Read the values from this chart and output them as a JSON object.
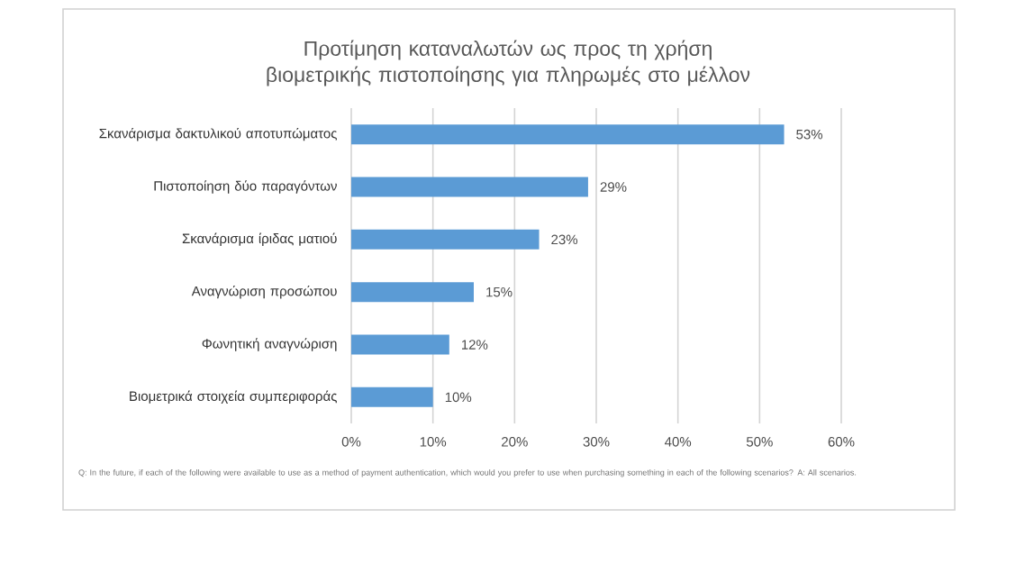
{
  "chart_data": {
    "type": "bar",
    "orientation": "horizontal",
    "title": "Προτίμηση καταναλωτών ως προς τη χρήση βιομετρικής πιστοποίησης για πληρωμές στο μέλλον",
    "categories": [
      "Σκανάρισμα δακτυλικού αποτυπώματος",
      "Πιστοποίηση δύο παραγόντων",
      "Σκανάρισμα ίριδας ματιού",
      "Αναγνώριση προσώπου",
      "Φωνητική αναγνώριση",
      "Βιομετρικά στοιχεία συμπεριφοράς"
    ],
    "values": [
      53,
      29,
      23,
      15,
      12,
      10
    ],
    "value_labels": [
      "53%",
      "29%",
      "23%",
      "15%",
      "12%",
      "10%"
    ],
    "color": "#5b9bd5",
    "xlim": [
      0,
      60
    ],
    "xticks": [
      {
        "value": 0,
        "label": "0%"
      },
      {
        "value": 10,
        "label": "10%"
      },
      {
        "value": 20,
        "label": "20%"
      },
      {
        "value": 30,
        "label": "30%"
      },
      {
        "value": 40,
        "label": "40%"
      },
      {
        "value": 50,
        "label": "50%"
      },
      {
        "value": 60,
        "label": "60%"
      }
    ],
    "grid": "x",
    "annotations": [
      "Q: In the future, if each of the following were available to use as a method of payment authentication, which would you prefer to use when purchasing something in each of the following scenarios? A: All scenarios."
    ]
  }
}
